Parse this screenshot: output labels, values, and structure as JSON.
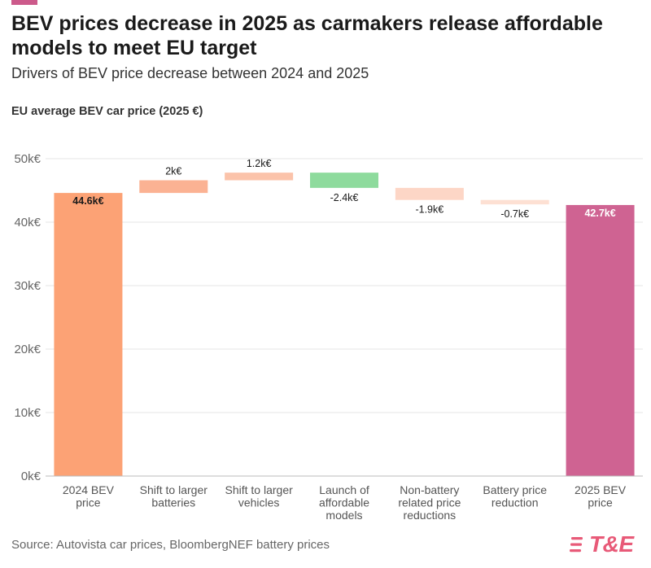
{
  "header": {
    "accent_color": "#cc5a8b",
    "title": "BEV prices decrease in 2025 as carmakers release affordable models to meet EU target",
    "subtitle": "Drivers of BEV price decrease between 2024 and 2025"
  },
  "chart_label": "EU average BEV car price (2025 €)",
  "footer": {
    "source": "Source: Autovista car prices, BloombergNEF battery prices",
    "logo_text": "T&E",
    "logo_color": "#e85a78"
  },
  "chart_data": {
    "type": "bar",
    "subtype": "waterfall",
    "ylim": [
      0,
      50
    ],
    "yticks": [
      0,
      10,
      20,
      30,
      40,
      50
    ],
    "ytick_labels": [
      "0k€",
      "10k€",
      "20k€",
      "30k€",
      "40k€",
      "50k€"
    ],
    "grid": true,
    "steps": [
      {
        "category": [
          "2024 BEV",
          "price"
        ],
        "kind": "total",
        "value": 44.6,
        "label": "44.6k€",
        "color": "#fca275"
      },
      {
        "category": [
          "Shift to larger",
          "batteries"
        ],
        "kind": "delta",
        "value": 2.0,
        "label": "2k€",
        "color": "#fbb293"
      },
      {
        "category": [
          "Shift to larger",
          "vehicles"
        ],
        "kind": "delta",
        "value": 1.2,
        "label": "1.2k€",
        "color": "#fbc3aa"
      },
      {
        "category": [
          "Launch of",
          "affordable",
          "models"
        ],
        "kind": "delta",
        "value": -2.4,
        "label": "-2.4k€",
        "color": "#8edb9d"
      },
      {
        "category": [
          "Non-battery",
          "related price",
          "reductions"
        ],
        "kind": "delta",
        "value": -1.9,
        "label": "-1.9k€",
        "color": "#fdd6c6"
      },
      {
        "category": [
          "Battery price",
          "reduction"
        ],
        "kind": "delta",
        "value": -0.7,
        "label": "-0.7k€",
        "color": "#fde0d3"
      },
      {
        "category": [
          "2025 BEV",
          "price"
        ],
        "kind": "total",
        "value": 42.7,
        "label": "42.7k€",
        "color": "#cf6392"
      }
    ]
  }
}
